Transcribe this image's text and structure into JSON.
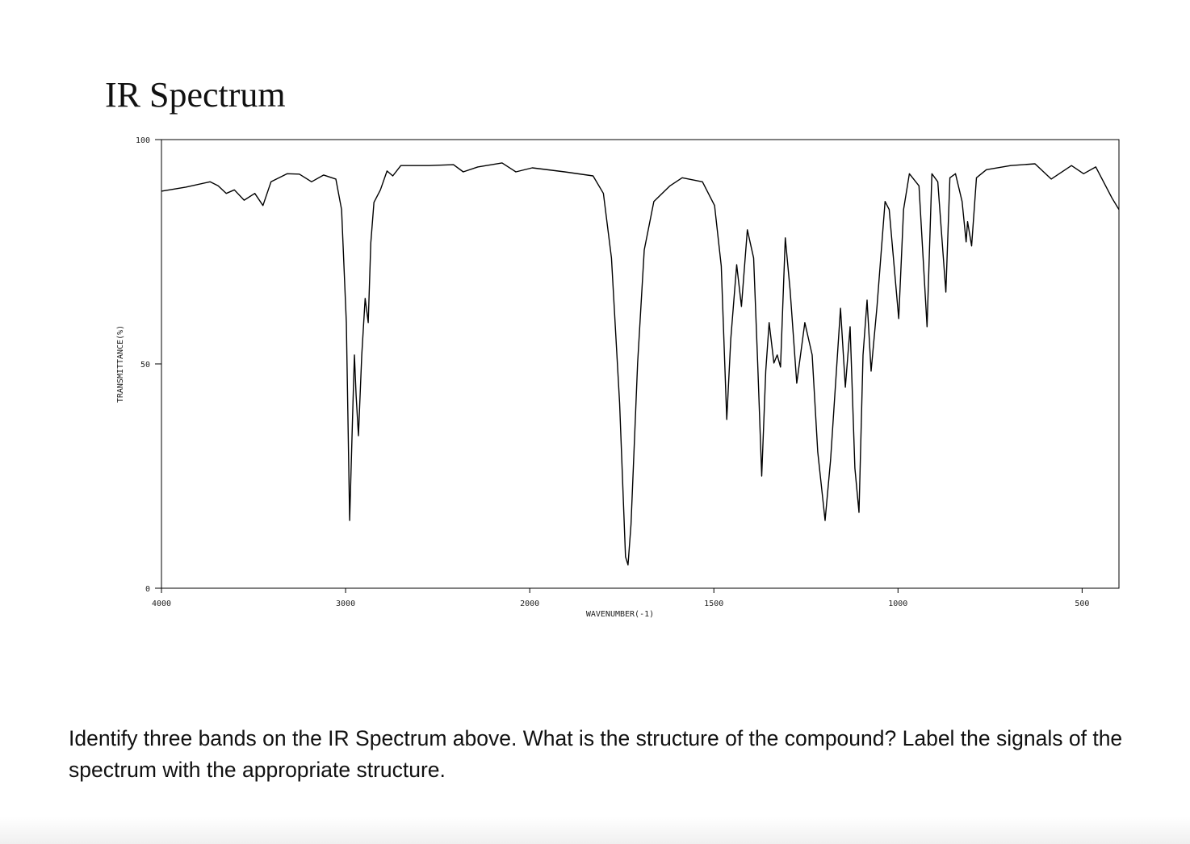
{
  "title": "IR Spectrum",
  "chart_data": {
    "type": "line",
    "xlabel": "WAVENUMBER(-1)",
    "ylabel": "TRANSMITTANCE(%)",
    "color": "#000000",
    "xlim": [
      4000,
      400
    ],
    "x_scale_break": 2000,
    "xticks": [
      4000,
      3000,
      2000,
      1500,
      1000,
      500
    ],
    "ylim": [
      0,
      100
    ],
    "yticks": [
      0,
      50,
      100
    ],
    "x": [
      4000,
      3868,
      3736,
      3692,
      3648,
      3604,
      3551,
      3493,
      3449,
      3405,
      3317,
      3251,
      3185,
      3119,
      3053,
      3022,
      2996,
      2978,
      2960,
      2952,
      2943,
      2930,
      2912,
      2894,
      2877,
      2863,
      2846,
      2811,
      2775,
      2744,
      2700,
      2546,
      2414,
      2361,
      2282,
      2150,
      2075,
      1993,
      1905,
      1828,
      1800,
      1778,
      1756,
      1740,
      1733,
      1725,
      1707,
      1689,
      1663,
      1619,
      1586,
      1531,
      1498,
      1480,
      1465,
      1454,
      1438,
      1425,
      1409,
      1392,
      1381,
      1370,
      1359,
      1350,
      1337,
      1328,
      1319,
      1306,
      1293,
      1275,
      1253,
      1233,
      1218,
      1198,
      1183,
      1156,
      1143,
      1130,
      1117,
      1106,
      1095,
      1084,
      1073,
      1057,
      1035,
      1024,
      998,
      985,
      969,
      943,
      921,
      908,
      892,
      870,
      859,
      844,
      826,
      815,
      811,
      800,
      787,
      760,
      694,
      628,
      584,
      529,
      496,
      463,
      419,
      400
    ],
    "values": [
      88.5,
      89.4,
      90.6,
      89.7,
      88,
      88.8,
      86.5,
      88,
      85.3,
      90.6,
      92.4,
      92.3,
      90.6,
      92.1,
      91.2,
      84.4,
      59.2,
      15.1,
      41.2,
      52,
      43,
      34,
      52,
      64.6,
      59.2,
      77,
      86,
      88.8,
      93,
      91.9,
      94.2,
      94.2,
      94.4,
      92.8,
      93.9,
      94.8,
      92.8,
      93.7,
      92.8,
      91.9,
      88,
      73.6,
      41.2,
      7,
      5.2,
      14.2,
      50.2,
      75.4,
      86.2,
      89.7,
      91.5,
      90.6,
      85.3,
      71.8,
      37.6,
      55.6,
      72.1,
      62.8,
      79.9,
      73.6,
      50.2,
      25,
      48.4,
      59.2,
      50.2,
      52,
      49.3,
      78.1,
      66.4,
      45.7,
      59.2,
      52,
      30.4,
      15.1,
      28.6,
      62.4,
      44.8,
      58.3,
      26.8,
      16.9,
      52,
      64.2,
      48.4,
      62.8,
      86.2,
      84.4,
      60.1,
      84.4,
      92.4,
      89.7,
      58.3,
      92.4,
      90.6,
      66,
      91.5,
      92.4,
      86.2,
      77.2,
      81.7,
      76.3,
      91.5,
      93.3,
      94.2,
      94.6,
      91.2,
      94.2,
      92.4,
      93.9,
      87,
      84.4
    ]
  },
  "question": "Identify three bands on the IR Spectrum above. What is the structure of the compound? Label the signals of the spectrum with the appropriate structure."
}
